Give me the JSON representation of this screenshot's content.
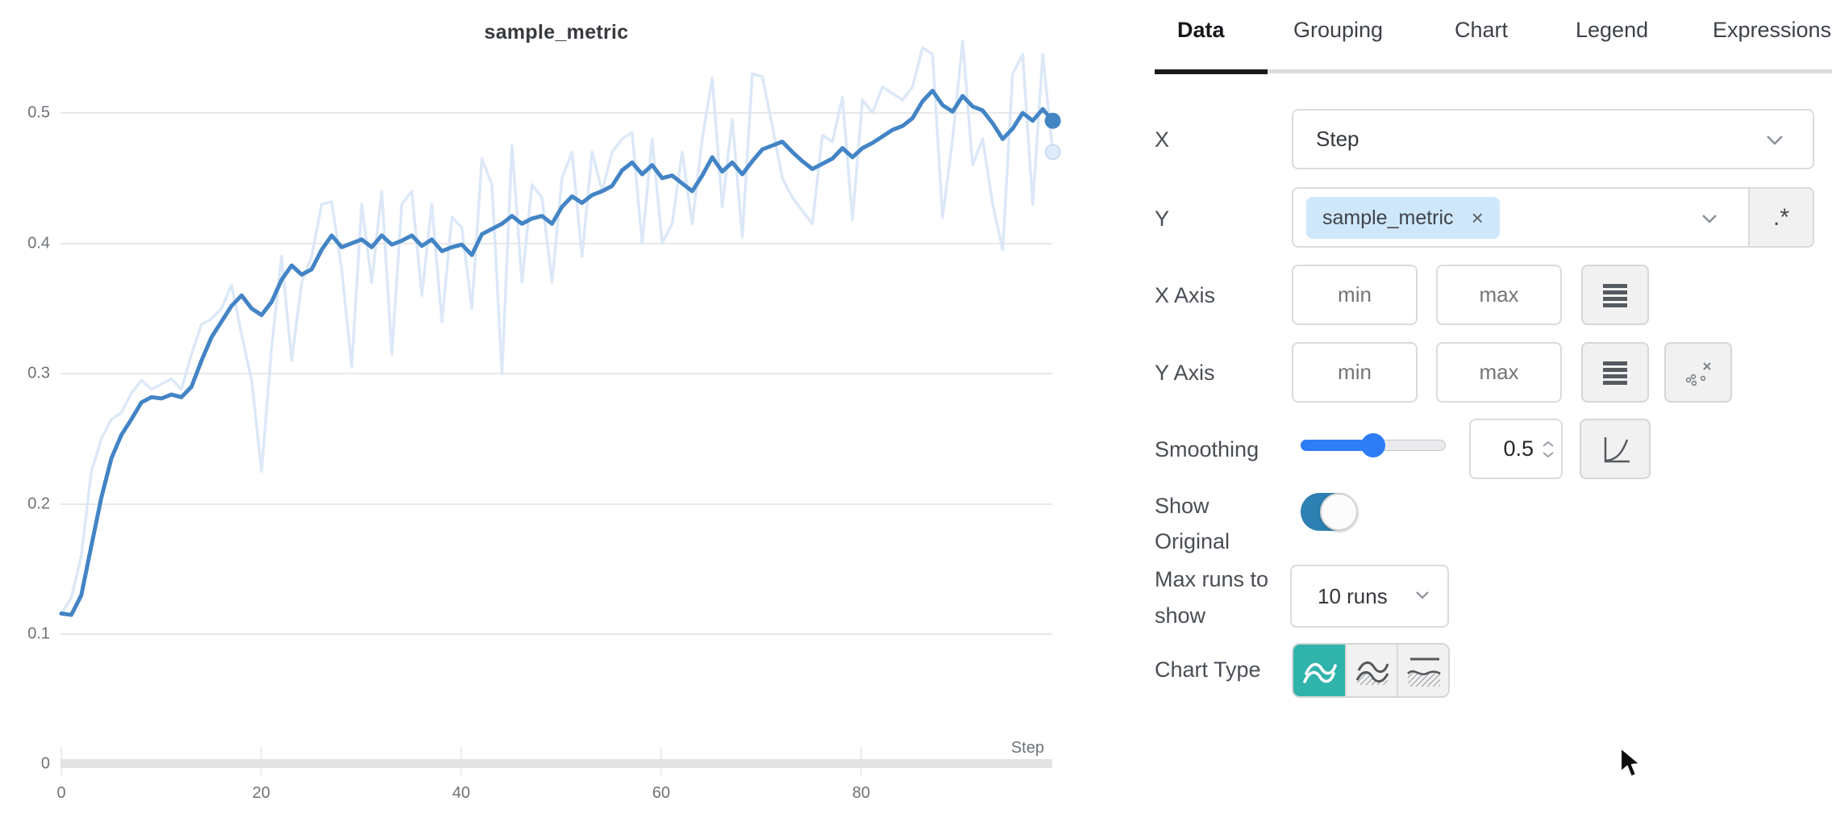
{
  "panel_title": "sample_metric",
  "tabs": {
    "active": "Data",
    "items": [
      "Data",
      "Grouping",
      "Chart",
      "Legend",
      "Expressions"
    ]
  },
  "fields": {
    "x": {
      "label": "X",
      "value": "Step"
    },
    "y": {
      "label": "Y",
      "tag": "sample_metric",
      "remove_glyph": "×",
      "regex_button": ".*"
    },
    "x_axis": {
      "label": "X Axis",
      "min_placeholder": "min",
      "max_placeholder": "max"
    },
    "y_axis": {
      "label": "Y Axis",
      "min_placeholder": "min",
      "max_placeholder": "max"
    },
    "smoothing": {
      "label": "Smoothing",
      "value": "0.5",
      "percent": 50
    },
    "show_original": {
      "label_line1": "Show",
      "label_line2": "Original",
      "enabled": true
    },
    "max_runs": {
      "label_line1": "Max runs to",
      "label_line2": "show",
      "value": "10 runs"
    },
    "chart_type": {
      "label": "Chart Type",
      "selected_index": 0
    }
  },
  "colors": {
    "smoothed_line": "#4384c5",
    "original_line": "#dce8f7",
    "original_dot_fill": "#e1ecfa",
    "original_dot_stroke": "#c9dcf3",
    "accent_teal": "#2fb3ab",
    "toggle_blue": "#2c80b2",
    "slider_blue": "#2e7cf6",
    "tag_blue": "#cfe7fb",
    "grid": "#e8e8e8",
    "axis_bar": "#e3e3e3"
  },
  "chart_data": {
    "type": "line",
    "title": "sample_metric",
    "xlabel": "Step",
    "ylabel": "",
    "xlim": [
      0,
      99
    ],
    "ylim": [
      0,
      0.56
    ],
    "x_ticks": [
      0,
      20,
      40,
      60,
      80
    ],
    "y_ticks": [
      0,
      0.1,
      0.2,
      0.3,
      0.4,
      0.5
    ],
    "y_tick_labels": [
      "0",
      "0.1",
      "0.2",
      "0.3",
      "0.4",
      "0.5"
    ],
    "grid": "horizontal-only",
    "legend": "none",
    "x_mode": "index",
    "x_start": 0,
    "x_step": 1,
    "series": [
      {
        "name": "sample_metric (smoothed, 0.5)",
        "color": "#4384c5",
        "values": [
          0.116,
          0.115,
          0.13,
          0.168,
          0.205,
          0.235,
          0.253,
          0.265,
          0.278,
          0.282,
          0.281,
          0.284,
          0.282,
          0.29,
          0.31,
          0.328,
          0.34,
          0.352,
          0.36,
          0.35,
          0.345,
          0.355,
          0.372,
          0.383,
          0.376,
          0.38,
          0.395,
          0.406,
          0.397,
          0.4,
          0.403,
          0.397,
          0.406,
          0.399,
          0.402,
          0.406,
          0.398,
          0.403,
          0.394,
          0.397,
          0.399,
          0.391,
          0.407,
          0.411,
          0.415,
          0.421,
          0.415,
          0.419,
          0.421,
          0.415,
          0.428,
          0.436,
          0.431,
          0.437,
          0.44,
          0.444,
          0.456,
          0.462,
          0.453,
          0.46,
          0.45,
          0.452,
          0.446,
          0.44,
          0.452,
          0.466,
          0.455,
          0.462,
          0.453,
          0.463,
          0.472,
          0.475,
          0.478,
          0.47,
          0.463,
          0.457,
          0.461,
          0.465,
          0.473,
          0.466,
          0.473,
          0.477,
          0.482,
          0.487,
          0.49,
          0.496,
          0.509,
          0.517,
          0.506,
          0.501,
          0.513,
          0.505,
          0.502,
          0.492,
          0.48,
          0.488,
          0.5,
          0.494,
          0.503,
          0.494
        ]
      },
      {
        "name": "sample_metric (original)",
        "color": "#dce8f7",
        "values": [
          0.116,
          0.128,
          0.16,
          0.225,
          0.25,
          0.265,
          0.27,
          0.285,
          0.295,
          0.288,
          0.292,
          0.296,
          0.288,
          0.315,
          0.338,
          0.342,
          0.35,
          0.368,
          0.33,
          0.295,
          0.225,
          0.32,
          0.39,
          0.31,
          0.37,
          0.39,
          0.43,
          0.432,
          0.38,
          0.305,
          0.43,
          0.37,
          0.44,
          0.315,
          0.43,
          0.44,
          0.36,
          0.43,
          0.34,
          0.42,
          0.412,
          0.35,
          0.465,
          0.445,
          0.3,
          0.475,
          0.37,
          0.445,
          0.435,
          0.37,
          0.45,
          0.47,
          0.39,
          0.47,
          0.44,
          0.47,
          0.48,
          0.485,
          0.4,
          0.48,
          0.4,
          0.415,
          0.47,
          0.415,
          0.48,
          0.527,
          0.428,
          0.495,
          0.405,
          0.53,
          0.528,
          0.49,
          0.45,
          0.435,
          0.425,
          0.415,
          0.483,
          0.478,
          0.512,
          0.418,
          0.51,
          0.5,
          0.52,
          0.515,
          0.51,
          0.52,
          0.55,
          0.545,
          0.42,
          0.48,
          0.555,
          0.46,
          0.48,
          0.43,
          0.395,
          0.53,
          0.545,
          0.43,
          0.545,
          0.47
        ]
      }
    ]
  }
}
